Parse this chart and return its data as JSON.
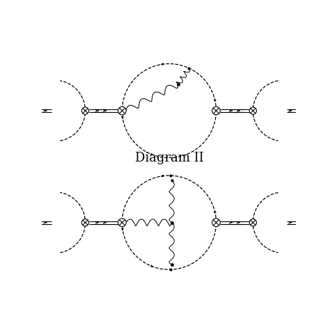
{
  "title": "Diagram II",
  "title_fontsize": 13,
  "background_color": "#ffffff",
  "figsize": [
    4.74,
    4.74
  ],
  "dpi": 100,
  "xlim": [
    0,
    10
  ],
  "ylim": [
    0,
    10
  ]
}
